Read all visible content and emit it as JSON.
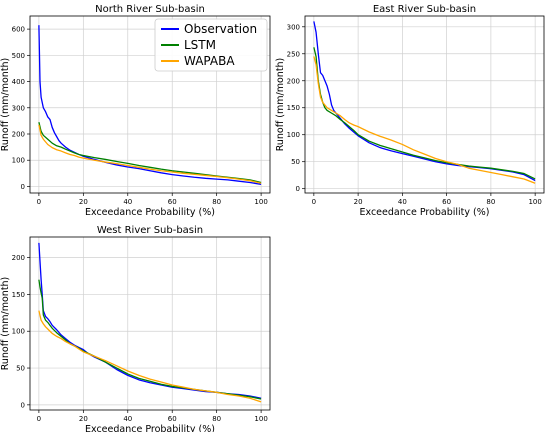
{
  "chart_data": [
    {
      "type": "line",
      "title": "North River Sub-basin",
      "xlabel": "Exceedance Probability (%)",
      "ylabel": "Runoff (mm/month)",
      "xlim": [
        -4,
        104
      ],
      "ylim": [
        -25,
        650
      ],
      "xticks": [
        "0",
        "20",
        "40",
        "60",
        "80",
        "100"
      ],
      "yticks": [
        "0",
        "100",
        "200",
        "300",
        "400",
        "500",
        "600"
      ],
      "grid": true,
      "legend": "top-right",
      "series": [
        {
          "name": "Observation",
          "color": "#0000ff",
          "x": [
            0,
            0.5,
            1,
            2,
            3,
            4,
            5,
            6,
            7,
            8,
            9,
            10,
            12,
            14,
            16,
            18,
            20,
            25,
            30,
            35,
            40,
            45,
            50,
            55,
            60,
            65,
            70,
            75,
            80,
            85,
            90,
            95,
            100
          ],
          "y": [
            615,
            400,
            340,
            300,
            285,
            265,
            255,
            225,
            205,
            190,
            175,
            165,
            150,
            138,
            130,
            122,
            115,
            103,
            92,
            82,
            74,
            68,
            60,
            52,
            45,
            40,
            35,
            31,
            28,
            25,
            20,
            15,
            8
          ]
        },
        {
          "name": "LSTM",
          "color": "#008000",
          "x": [
            0,
            1,
            2,
            4,
            6,
            8,
            10,
            12,
            14,
            16,
            18,
            20,
            25,
            30,
            35,
            40,
            45,
            50,
            55,
            60,
            65,
            70,
            75,
            80,
            85,
            90,
            95,
            100
          ],
          "y": [
            245,
            210,
            195,
            180,
            165,
            155,
            150,
            142,
            135,
            128,
            122,
            118,
            110,
            103,
            95,
            88,
            80,
            73,
            66,
            60,
            55,
            50,
            45,
            40,
            35,
            30,
            25,
            15
          ]
        },
        {
          "name": "WAPABA",
          "color": "#ffa500",
          "x": [
            0,
            1,
            2,
            4,
            6,
            8,
            10,
            12,
            14,
            16,
            18,
            20,
            25,
            30,
            35,
            40,
            45,
            50,
            55,
            60,
            65,
            70,
            75,
            80,
            85,
            90,
            95,
            100
          ],
          "y": [
            235,
            195,
            180,
            160,
            148,
            140,
            135,
            128,
            122,
            118,
            112,
            108,
            100,
            93,
            87,
            80,
            73,
            66,
            60,
            55,
            50,
            46,
            42,
            38,
            33,
            28,
            22,
            12
          ]
        }
      ]
    },
    {
      "type": "line",
      "title": "East River Sub-basin",
      "xlabel": "Exceedance Probability (%)",
      "ylabel": "Runoff (mm/month)",
      "xlim": [
        -4,
        104
      ],
      "ylim": [
        -8,
        320
      ],
      "xticks": [
        "0",
        "20",
        "40",
        "60",
        "80",
        "100"
      ],
      "yticks": [
        "0",
        "50",
        "100",
        "150",
        "200",
        "250",
        "300"
      ],
      "grid": true,
      "series": [
        {
          "name": "Observation",
          "color": "#0000ff",
          "x": [
            0,
            0.5,
            1,
            2,
            3,
            4,
            5,
            6,
            7,
            8,
            9,
            10,
            12,
            14,
            16,
            18,
            20,
            25,
            30,
            35,
            40,
            45,
            50,
            55,
            60,
            65,
            70,
            75,
            80,
            85,
            90,
            95,
            100
          ],
          "y": [
            310,
            300,
            290,
            250,
            215,
            210,
            200,
            190,
            175,
            155,
            145,
            140,
            130,
            120,
            112,
            105,
            98,
            85,
            76,
            70,
            65,
            60,
            55,
            50,
            46,
            43,
            41,
            39,
            37,
            34,
            31,
            26,
            15
          ]
        },
        {
          "name": "LSTM",
          "color": "#008000",
          "x": [
            0,
            1,
            2,
            3,
            4,
            5,
            6,
            8,
            10,
            12,
            14,
            16,
            18,
            20,
            25,
            30,
            35,
            40,
            45,
            50,
            55,
            60,
            65,
            70,
            75,
            80,
            85,
            90,
            95,
            100
          ],
          "y": [
            262,
            245,
            200,
            175,
            160,
            150,
            145,
            140,
            135,
            128,
            122,
            115,
            108,
            100,
            88,
            80,
            74,
            68,
            62,
            57,
            52,
            48,
            45,
            42,
            40,
            38,
            35,
            32,
            28,
            18
          ]
        },
        {
          "name": "WAPABA",
          "color": "#ffa500",
          "x": [
            0,
            1,
            2,
            3,
            4,
            5,
            6,
            8,
            10,
            12,
            14,
            16,
            18,
            20,
            25,
            30,
            35,
            40,
            45,
            50,
            55,
            60,
            65,
            70,
            75,
            80,
            85,
            90,
            95,
            100
          ],
          "y": [
            245,
            230,
            195,
            170,
            160,
            155,
            150,
            145,
            140,
            135,
            128,
            122,
            118,
            115,
            105,
            97,
            90,
            82,
            72,
            64,
            56,
            50,
            45,
            38,
            34,
            30,
            26,
            22,
            18,
            10
          ]
        }
      ]
    },
    {
      "type": "line",
      "title": "West River Sub-basin",
      "xlabel": "Exceedance Probability (%)",
      "ylabel": "Runoff (mm/month)",
      "xlim": [
        -4,
        104
      ],
      "ylim": [
        -7,
        228
      ],
      "xticks": [
        "0",
        "20",
        "40",
        "60",
        "80",
        "100"
      ],
      "yticks": [
        "0",
        "50",
        "100",
        "150",
        "200"
      ],
      "grid": true,
      "series": [
        {
          "name": "Observation",
          "color": "#0000ff",
          "x": [
            0,
            0.5,
            1,
            1.5,
            2,
            3,
            4,
            5,
            6,
            8,
            10,
            12,
            14,
            16,
            18,
            20,
            22,
            25,
            30,
            35,
            40,
            45,
            50,
            55,
            60,
            65,
            70,
            75,
            80,
            85,
            90,
            95,
            100
          ],
          "y": [
            220,
            195,
            170,
            150,
            128,
            120,
            117,
            113,
            108,
            102,
            95,
            90,
            85,
            81,
            78,
            75,
            70,
            65,
            58,
            48,
            40,
            34,
            30,
            27,
            24,
            22,
            20,
            18,
            17,
            15,
            14,
            12,
            9
          ]
        },
        {
          "name": "LSTM",
          "color": "#008000",
          "x": [
            0,
            0.5,
            1,
            1.5,
            2,
            3,
            4,
            5,
            6,
            8,
            10,
            12,
            14,
            16,
            18,
            20,
            25,
            30,
            35,
            40,
            45,
            50,
            55,
            60,
            65,
            70,
            75,
            80,
            85,
            90,
            95,
            100
          ],
          "y": [
            170,
            160,
            152,
            145,
            122,
            115,
            112,
            108,
            104,
            98,
            93,
            88,
            83,
            80,
            77,
            73,
            66,
            58,
            50,
            42,
            36,
            32,
            28,
            25,
            23,
            21,
            19,
            17,
            15,
            13,
            11,
            8
          ]
        },
        {
          "name": "WAPABA",
          "color": "#ffa500",
          "x": [
            0,
            1,
            2,
            3,
            4,
            5,
            6,
            8,
            10,
            12,
            14,
            16,
            18,
            20,
            25,
            30,
            35,
            40,
            45,
            50,
            55,
            60,
            65,
            70,
            75,
            80,
            85,
            90,
            95,
            100
          ],
          "y": [
            128,
            115,
            110,
            106,
            103,
            100,
            97,
            93,
            90,
            86,
            83,
            80,
            76,
            72,
            66,
            60,
            53,
            46,
            40,
            35,
            31,
            27,
            24,
            21,
            19,
            17,
            14,
            12,
            9,
            4
          ]
        }
      ]
    }
  ]
}
